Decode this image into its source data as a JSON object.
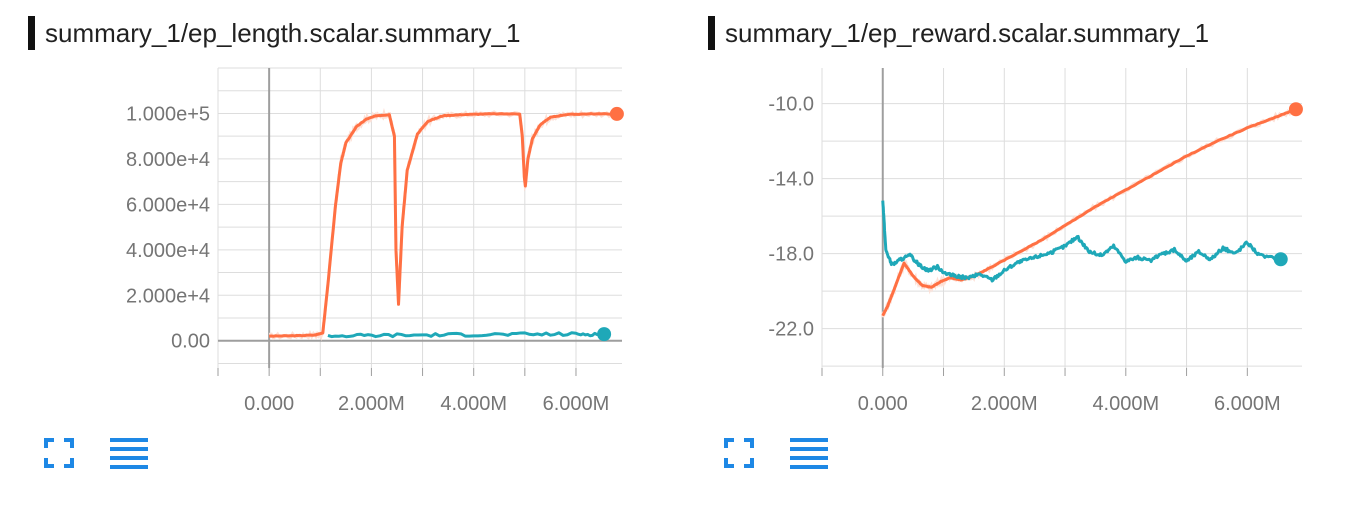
{
  "colors": {
    "orange": "#ff7043",
    "orange_light": "#fde0d6",
    "teal": "#1fa8b8",
    "grid": "#dddddd",
    "axis": "#9e9e9e",
    "zero_axis": "#9e9e9e",
    "ui_blue": "#1e88e5"
  },
  "controls": {
    "expand_icon": "fullscreen-expand-icon",
    "data_table_icon": "data-table-lines-icon"
  },
  "chart_data": [
    {
      "type": "line",
      "title": "summary_1/ep_length.scalar.summary_1",
      "xlabel": "",
      "ylabel": "",
      "xlim": [
        -1000000,
        6900000
      ],
      "ylim": [
        -12000,
        120000
      ],
      "x_ticks": [
        0,
        2000000,
        4000000,
        6000000
      ],
      "x_tick_labels": [
        "0.000",
        "2.000M",
        "4.000M",
        "6.000M"
      ],
      "y_ticks": [
        0,
        20000,
        40000,
        60000,
        80000,
        100000
      ],
      "y_tick_labels": [
        "0.00",
        "2.000e+4",
        "4.000e+4",
        "6.000e+4",
        "8.000e+4",
        "1.000e+5"
      ],
      "grid": true,
      "series": [
        {
          "color": "orange",
          "x": [
            0,
            500000,
            900000,
            1050000,
            1150000,
            1300000,
            1400000,
            1500000,
            1700000,
            1900000,
            2100000,
            2350000,
            2450000,
            2480000,
            2530000,
            2600000,
            2700000,
            2900000,
            3100000,
            3400000,
            3800000,
            4300000,
            4900000,
            4950000,
            4990000,
            5010000,
            5060000,
            5150000,
            5300000,
            5500000,
            5800000,
            6200000,
            6800000
          ],
          "y": [
            2000,
            2200,
            2500,
            3500,
            25000,
            60000,
            78000,
            87000,
            94000,
            97500,
            99000,
            99500,
            90000,
            40000,
            16000,
            50000,
            75000,
            91000,
            96500,
            99000,
            99500,
            99800,
            99800,
            90000,
            72000,
            68000,
            80000,
            89000,
            95000,
            98300,
            99500,
            99800,
            99800
          ],
          "endpoint_marker": true
        },
        {
          "color": "teal",
          "x": [
            1150000,
            2000000,
            3000000,
            4000000,
            5000000,
            6000000,
            6550000
          ],
          "y": [
            2100,
            2300,
            2500,
            2700,
            2800,
            2900,
            2900
          ],
          "endpoint_marker": true
        }
      ]
    },
    {
      "type": "line",
      "title": "summary_1/ep_reward.scalar.summary_1",
      "xlabel": "",
      "ylabel": "",
      "xlim": [
        -1000000,
        6900000
      ],
      "ylim": [
        -24.1,
        -8.1
      ],
      "x_ticks": [
        0,
        2000000,
        4000000,
        6000000
      ],
      "x_tick_labels": [
        "0.000",
        "2.000M",
        "4.000M",
        "6.000M"
      ],
      "y_ticks": [
        -22,
        -18,
        -14,
        -10
      ],
      "y_tick_labels": [
        "-22.0",
        "-18.0",
        "-14.0",
        "-10.0"
      ],
      "grid": true,
      "series": [
        {
          "color": "orange",
          "x": [
            0,
            80000,
            200000,
            350000,
            500000,
            650000,
            800000,
            950000,
            1100000,
            1300000,
            1500000,
            1800000,
            2200000,
            2600000,
            3000000,
            3500000,
            4000000,
            4500000,
            5000000,
            5500000,
            6000000,
            6400000,
            6800000
          ],
          "y": [
            -21.3,
            -20.8,
            -19.8,
            -18.5,
            -19.2,
            -19.7,
            -19.8,
            -19.5,
            -19.3,
            -19.4,
            -19.2,
            -18.7,
            -18.0,
            -17.3,
            -16.5,
            -15.5,
            -14.6,
            -13.7,
            -12.8,
            -12.0,
            -11.3,
            -10.8,
            -10.3
          ],
          "endpoint_marker": true
        },
        {
          "color": "teal",
          "x": [
            0,
            50000,
            150000,
            300000,
            450000,
            600000,
            750000,
            900000,
            1050000,
            1200000,
            1400000,
            1600000,
            1800000,
            2000000,
            2200000,
            2400000,
            2600000,
            2800000,
            3000000,
            3200000,
            3400000,
            3600000,
            3800000,
            4000000,
            4200000,
            4400000,
            4600000,
            4800000,
            5000000,
            5200000,
            5400000,
            5600000,
            5800000,
            6000000,
            6200000,
            6550000
          ],
          "y": [
            -15.1,
            -17.8,
            -18.6,
            -18.3,
            -18.1,
            -18.6,
            -18.9,
            -18.7,
            -19.1,
            -19.2,
            -19.3,
            -19.1,
            -19.4,
            -18.9,
            -18.5,
            -18.3,
            -18.1,
            -17.9,
            -17.6,
            -17.1,
            -17.9,
            -18.1,
            -17.6,
            -18.4,
            -18.2,
            -18.4,
            -18.0,
            -17.8,
            -18.4,
            -17.9,
            -18.3,
            -17.7,
            -18.0,
            -17.4,
            -18.1,
            -18.3
          ],
          "endpoint_marker": true
        }
      ]
    }
  ]
}
